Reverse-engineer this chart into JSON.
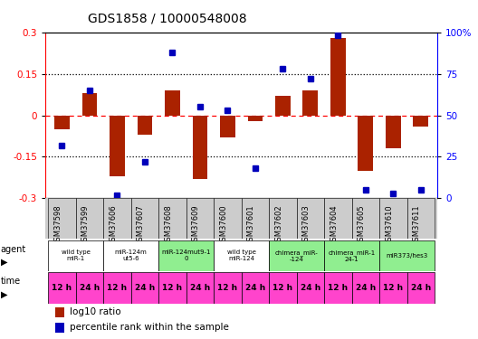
{
  "title": "GDS1858 / 10000548008",
  "samples": [
    "GSM37598",
    "GSM37599",
    "GSM37606",
    "GSM37607",
    "GSM37608",
    "GSM37609",
    "GSM37600",
    "GSM37601",
    "GSM37602",
    "GSM37603",
    "GSM37604",
    "GSM37605",
    "GSM37610",
    "GSM37611"
  ],
  "log10_ratio": [
    -0.05,
    0.08,
    -0.22,
    -0.07,
    0.09,
    -0.23,
    -0.08,
    -0.02,
    0.07,
    0.09,
    0.28,
    -0.2,
    -0.12,
    -0.04
  ],
  "percentile_rank": [
    32,
    65,
    2,
    22,
    88,
    55,
    53,
    18,
    78,
    72,
    98,
    5,
    3,
    5
  ],
  "agents": [
    {
      "label": "wild type\nmiR-1",
      "cols": [
        0,
        1
      ],
      "color": "#ffffff"
    },
    {
      "label": "miR-124m\nut5-6",
      "cols": [
        2,
        3
      ],
      "color": "#ffffff"
    },
    {
      "label": "miR-124mut9-1\n0",
      "cols": [
        4,
        5
      ],
      "color": "#90EE90"
    },
    {
      "label": "wild type\nmiR-124",
      "cols": [
        6,
        7
      ],
      "color": "#ffffff"
    },
    {
      "label": "chimera_miR-\n-124",
      "cols": [
        8,
        9
      ],
      "color": "#90EE90"
    },
    {
      "label": "chimera_miR-1\n24-1",
      "cols": [
        10,
        11
      ],
      "color": "#90EE90"
    },
    {
      "label": "miR373/hes3",
      "cols": [
        12,
        13
      ],
      "color": "#90EE90"
    }
  ],
  "times": [
    "12 h",
    "24 h",
    "12 h",
    "24 h",
    "12 h",
    "24 h",
    "12 h",
    "24 h",
    "12 h",
    "24 h",
    "12 h",
    "24 h",
    "12 h",
    "24 h"
  ],
  "time_color": "#FF44CC",
  "bar_color": "#AA2200",
  "dot_color": "#0000BB",
  "ylim_left": [
    -0.3,
    0.3
  ],
  "ylim_right": [
    0,
    100
  ],
  "yticks_left": [
    -0.3,
    -0.15,
    0.0,
    0.15,
    0.3
  ],
  "yticks_right": [
    0,
    25,
    50,
    75,
    100
  ],
  "hlines": [
    -0.15,
    0.15
  ],
  "background_color": "#ffffff",
  "xticklabel_bg": "#cccccc"
}
